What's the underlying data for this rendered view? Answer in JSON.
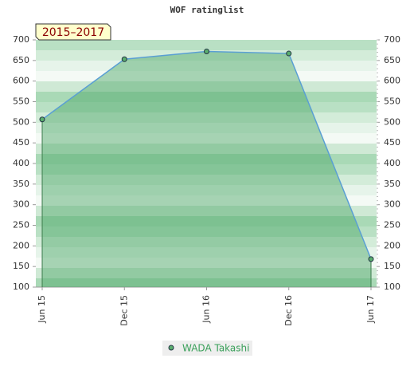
{
  "chart_data": {
    "type": "area",
    "title": "WOF ratinglist",
    "annotation": "2015–2017",
    "categories": [
      "Jun 15",
      "Dec 15",
      "Jun 16",
      "Dec 16",
      "Jun 17"
    ],
    "series": [
      {
        "name": "WADA Takashi",
        "color": "#5a9fd4",
        "values": [
          507,
          653,
          672,
          667,
          168
        ]
      }
    ],
    "ylim": [
      100,
      700
    ],
    "yticks": [
      100,
      150,
      200,
      250,
      300,
      350,
      400,
      450,
      500,
      550,
      600,
      650,
      700
    ],
    "legend": "bottom"
  }
}
